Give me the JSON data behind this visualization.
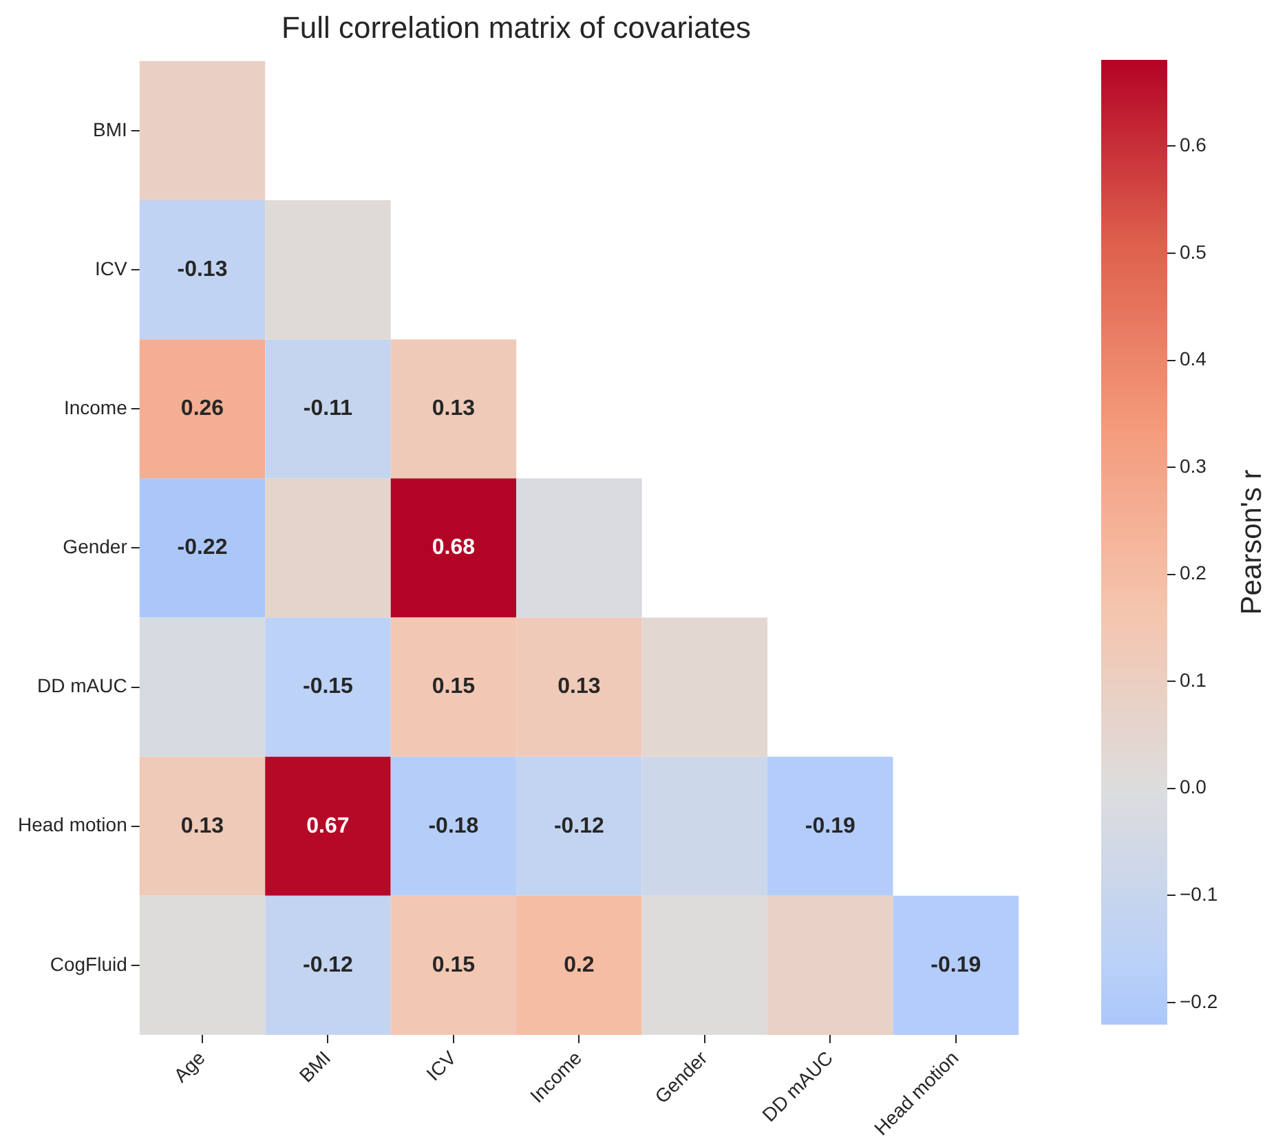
{
  "chart_data": {
    "type": "heatmap",
    "title": "Full correlation matrix of covariates",
    "clabel": "Pearson's r",
    "categories": [
      "Age",
      "BMI",
      "ICV",
      "Income",
      "Gender",
      "DD mAUC",
      "Head motion"
    ],
    "y_categories": [
      "BMI",
      "ICV",
      "Income",
      "Gender",
      "DD mAUC",
      "Head motion",
      "CogFluid"
    ],
    "cells": [
      [
        0.09,
        null,
        null,
        null,
        null,
        null,
        null
      ],
      [
        -0.13,
        0.02,
        null,
        null,
        null,
        null,
        null
      ],
      [
        0.26,
        -0.11,
        0.13,
        null,
        null,
        null,
        null
      ],
      [
        -0.22,
        0.06,
        0.68,
        -0.02,
        null,
        null,
        null
      ],
      [
        -0.03,
        -0.15,
        0.15,
        0.13,
        0.04,
        null,
        null
      ],
      [
        0.13,
        0.67,
        -0.18,
        -0.12,
        -0.08,
        -0.19,
        null
      ],
      [
        0.01,
        -0.12,
        0.15,
        0.2,
        0.01,
        0.08,
        -0.19
      ]
    ],
    "cell_labels": [
      [
        null,
        null,
        null,
        null,
        null,
        null,
        null
      ],
      [
        "-0.13",
        null,
        null,
        null,
        null,
        null,
        null
      ],
      [
        "0.26",
        "-0.11",
        "0.13",
        null,
        null,
        null,
        null
      ],
      [
        "-0.22",
        null,
        "0.68",
        null,
        null,
        null,
        null
      ],
      [
        null,
        "-0.15",
        "0.15",
        "0.13",
        null,
        null,
        null
      ],
      [
        "0.13",
        "0.67",
        "-0.18",
        "-0.12",
        null,
        "-0.19",
        null
      ],
      [
        null,
        "-0.12",
        "0.15",
        "0.2",
        null,
        null,
        "-0.19"
      ]
    ],
    "clim": [
      -0.22,
      0.68
    ],
    "cticks": [
      {
        "value": -0.2,
        "label": "−0.2"
      },
      {
        "value": -0.1,
        "label": "−0.1"
      },
      {
        "value": 0,
        "label": "0.0"
      },
      0.1,
      0.2,
      0.3,
      0.4,
      0.5,
      0.6
    ]
  }
}
